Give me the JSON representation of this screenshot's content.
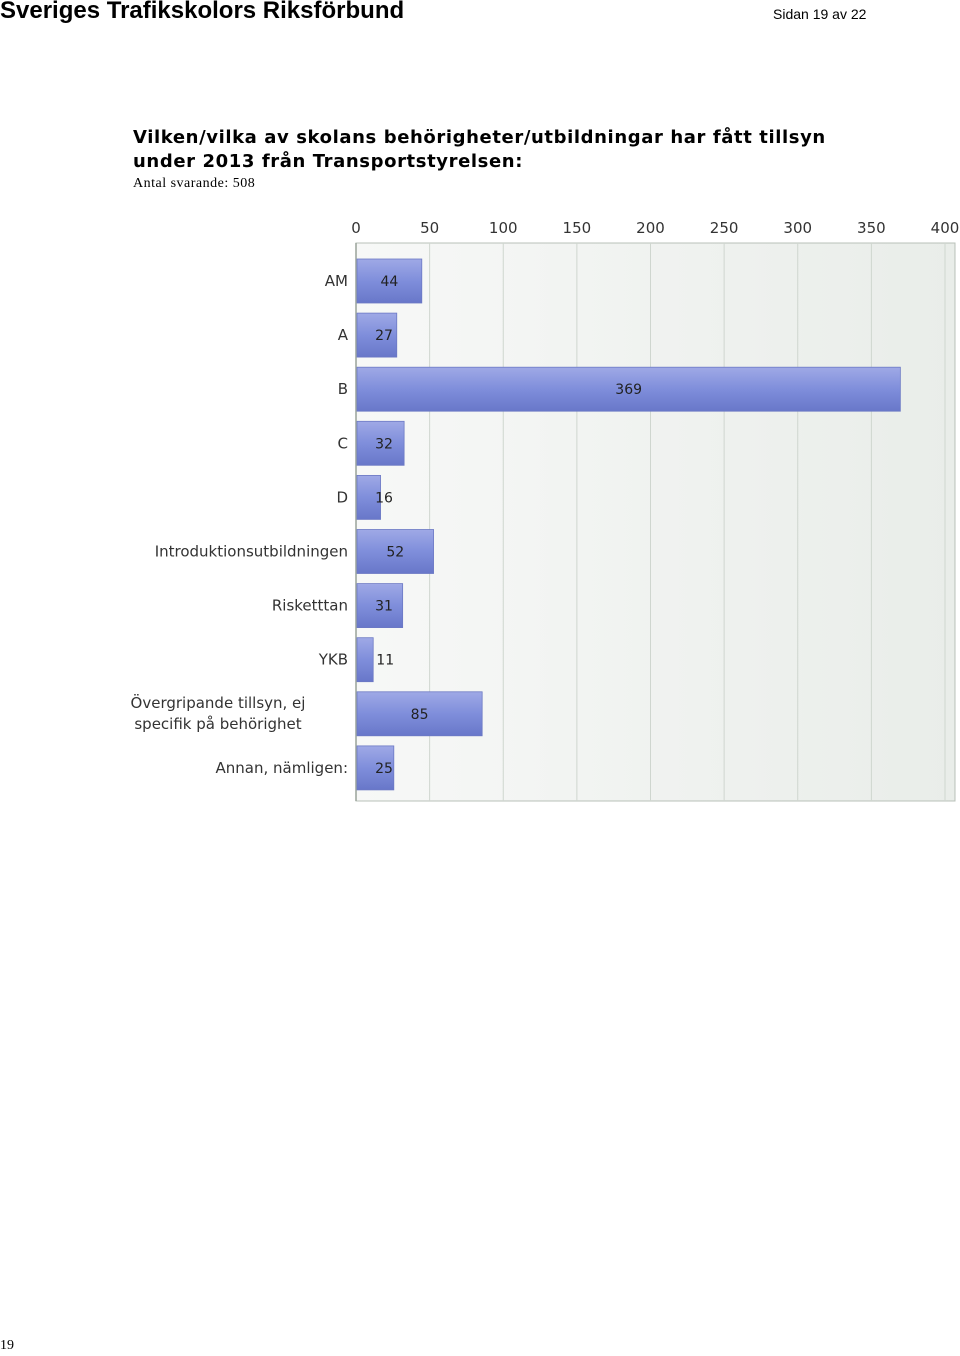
{
  "header": {
    "organization": "Sveriges Trafikskolors Riksförbund",
    "page_info": "Sidan 19 av 22"
  },
  "question": {
    "title": "Vilken/vilka av skolans behörigheter/utbildningar har fått tillsyn under 2013 från Transportstyrelsen:",
    "respondents": "Antal svarande: 508"
  },
  "footer": {
    "page_number": "19"
  },
  "chart_data": {
    "type": "bar",
    "orientation": "horizontal",
    "categories": [
      "AM",
      "A",
      "B",
      "C",
      "D",
      "Introduktionsutbildningen",
      "Risketttan",
      "YKB",
      "Övergripande tillsyn, ej specifik på behörighet",
      "Annan, nämligen:"
    ],
    "values": [
      44,
      27,
      369,
      32,
      16,
      52,
      31,
      11,
      85,
      25
    ],
    "data_labels": [
      "44",
      "27",
      "369",
      "32",
      "16",
      "52",
      "31",
      "11",
      "85",
      "25"
    ],
    "xlim": [
      0,
      400
    ],
    "xticks": [
      0,
      50,
      100,
      150,
      200,
      250,
      300,
      350,
      400
    ],
    "xtick_labels": [
      "0",
      "50",
      "100",
      "150",
      "200",
      "250",
      "300",
      "350",
      "400"
    ],
    "axis_position": "top",
    "grid": true,
    "colors": {
      "bar": "#7f8edb",
      "bar_dark": "#5866b8",
      "plot_bg": "#f2f5f2",
      "grid": "#cfd6cf"
    }
  }
}
